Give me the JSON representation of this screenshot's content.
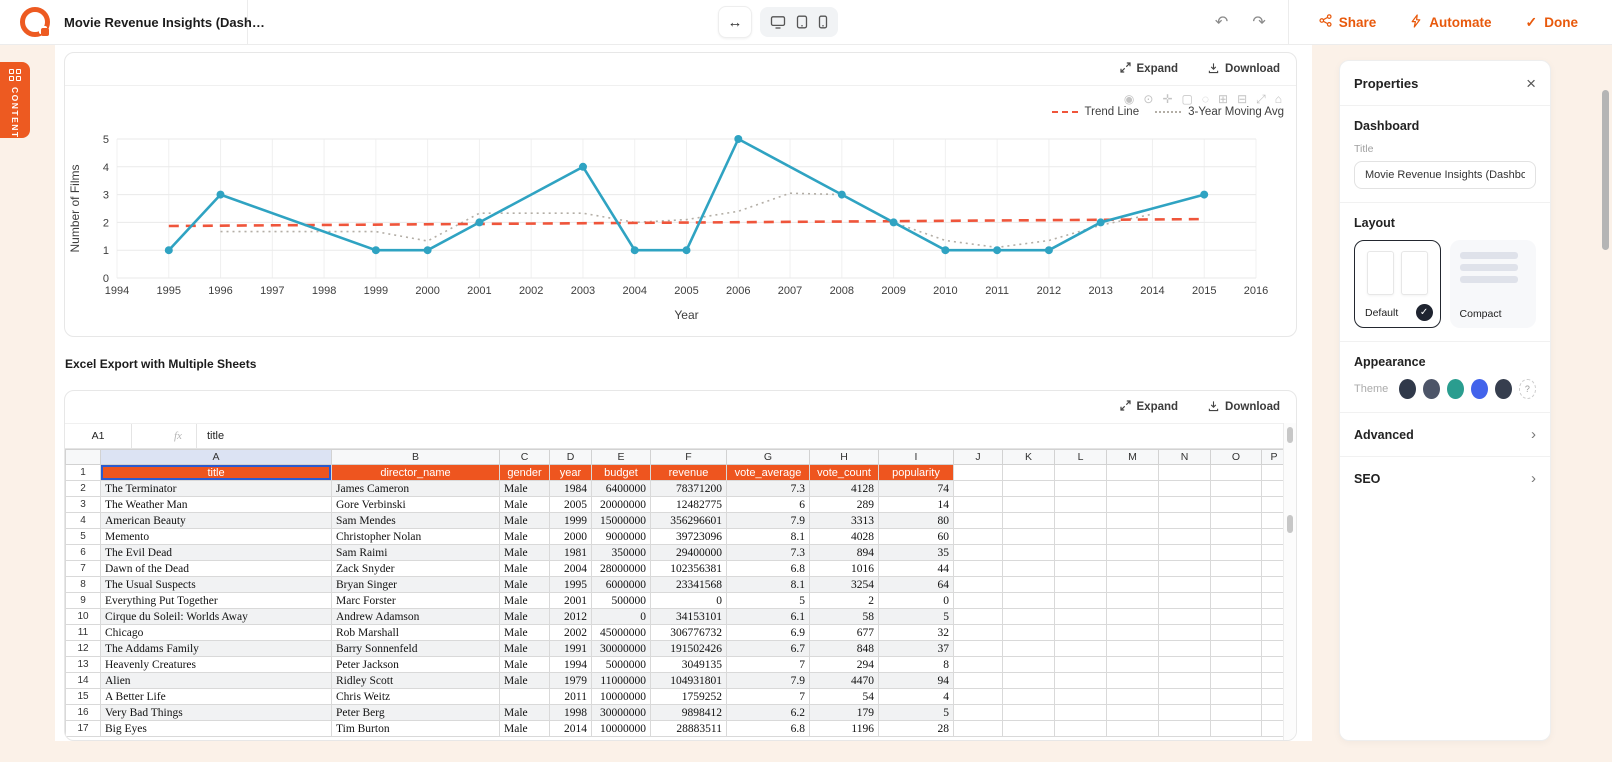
{
  "topbar": {
    "title": "Movie Revenue Insights (Dash…",
    "share_label": "Share",
    "automate_label": "Automate",
    "done_label": "Done"
  },
  "content_tab": {
    "label": "CONTENT"
  },
  "chart_card": {
    "expand_label": "Expand",
    "download_label": "Download",
    "modebar_icons": [
      {
        "name": "camera-icon",
        "glyph": "◉"
      },
      {
        "name": "zoom-icon",
        "glyph": "⊙"
      },
      {
        "name": "pan-icon",
        "glyph": "✛"
      },
      {
        "name": "box-select-icon",
        "glyph": "▢"
      },
      {
        "name": "lasso-icon",
        "glyph": "◌"
      },
      {
        "name": "zoom-in-icon",
        "glyph": "⊞"
      },
      {
        "name": "zoom-out-icon",
        "glyph": "⊟"
      },
      {
        "name": "autoscale-icon",
        "glyph": "⤢"
      },
      {
        "name": "reset-home-icon",
        "glyph": "⌂"
      }
    ],
    "legend": [
      {
        "label": "Trend Line",
        "color": "#ef553b",
        "style": "dashed"
      },
      {
        "label": "3-Year Moving Avg",
        "color": "#b3aea6",
        "style": "dotted"
      }
    ]
  },
  "chart_data": {
    "type": "line",
    "xlabel": "Year",
    "ylabel": "Number of Films",
    "xlim": [
      1994,
      2016
    ],
    "ylim": [
      0,
      5
    ],
    "xticks": [
      1994,
      1995,
      1996,
      1997,
      1998,
      1999,
      2000,
      2001,
      2002,
      2003,
      2004,
      2005,
      2006,
      2007,
      2008,
      2009,
      2010,
      2011,
      2012,
      2013,
      2014,
      2015,
      2016
    ],
    "yticks": [
      0,
      1,
      2,
      3,
      4,
      5
    ],
    "grid": true,
    "legend_position": "top-right",
    "series": [
      {
        "name": "Films per Year",
        "color": "#2fa3c2",
        "style": "solid-markers",
        "x": [
          1995,
          1996,
          1999,
          2000,
          2001,
          2003,
          2004,
          2005,
          2006,
          2008,
          2009,
          2010,
          2011,
          2012,
          2013,
          2015
        ],
        "y": [
          1,
          3,
          1,
          1,
          2,
          4,
          1,
          1,
          5,
          3,
          2,
          1,
          1,
          1,
          2,
          3
        ]
      },
      {
        "name": "3-Year Moving Avg",
        "color": "#b3aea6",
        "style": "dotted",
        "x": [
          1996,
          1999,
          2000,
          2001,
          2003,
          2004,
          2005,
          2006,
          2007,
          2008,
          2009,
          2010,
          2011,
          2012,
          2013,
          2014
        ],
        "y": [
          1.67,
          1.67,
          1.33,
          2.33,
          2.33,
          2.0,
          2.1,
          2.4,
          3.05,
          3.0,
          2.0,
          1.35,
          1.1,
          1.35,
          1.9,
          2.3
        ]
      },
      {
        "name": "Trend Line",
        "color": "#ef553b",
        "style": "dashed",
        "x": [
          1995,
          2015
        ],
        "y": [
          1.87,
          2.12
        ]
      }
    ]
  },
  "sheet_section": {
    "heading": "Excel Export with Multiple Sheets",
    "expand_label": "Expand",
    "download_label": "Download",
    "cell_ref": "A1",
    "fx_label": "fx",
    "formula_value": "title",
    "selected_cell": "A1",
    "column_letters": [
      "A",
      "B",
      "C",
      "D",
      "E",
      "F",
      "G",
      "H",
      "I",
      "J",
      "K",
      "L",
      "M",
      "N",
      "O",
      "P"
    ],
    "header_row": [
      "title",
      "director_name",
      "gender",
      "year",
      "budget",
      "revenue",
      "vote_average",
      "vote_count",
      "popularity"
    ],
    "rows": [
      [
        "The Terminator",
        "James Cameron",
        "Male",
        "1984",
        "6400000",
        "78371200",
        "7.3",
        "4128",
        "74"
      ],
      [
        "The Weather Man",
        "Gore Verbinski",
        "Male",
        "2005",
        "20000000",
        "12482775",
        "6",
        "289",
        "14"
      ],
      [
        "American Beauty",
        "Sam Mendes",
        "Male",
        "1999",
        "15000000",
        "356296601",
        "7.9",
        "3313",
        "80"
      ],
      [
        "Memento",
        "Christopher Nolan",
        "Male",
        "2000",
        "9000000",
        "39723096",
        "8.1",
        "4028",
        "60"
      ],
      [
        "The Evil Dead",
        "Sam Raimi",
        "Male",
        "1981",
        "350000",
        "29400000",
        "7.3",
        "894",
        "35"
      ],
      [
        "Dawn of the Dead",
        "Zack Snyder",
        "Male",
        "2004",
        "28000000",
        "102356381",
        "6.8",
        "1016",
        "44"
      ],
      [
        "The Usual Suspects",
        "Bryan Singer",
        "Male",
        "1995",
        "6000000",
        "23341568",
        "8.1",
        "3254",
        "64"
      ],
      [
        "Everything Put Together",
        "Marc Forster",
        "Male",
        "2001",
        "500000",
        "0",
        "5",
        "2",
        "0"
      ],
      [
        "Cirque du Soleil: Worlds Away",
        "Andrew Adamson",
        "Male",
        "2012",
        "0",
        "34153101",
        "6.1",
        "58",
        "5"
      ],
      [
        "Chicago",
        "Rob Marshall",
        "Male",
        "2002",
        "45000000",
        "306776732",
        "6.9",
        "677",
        "32"
      ],
      [
        "The Addams Family",
        "Barry Sonnenfeld",
        "Male",
        "1991",
        "30000000",
        "191502426",
        "6.7",
        "848",
        "37"
      ],
      [
        "Heavenly Creatures",
        "Peter Jackson",
        "Male",
        "1994",
        "5000000",
        "3049135",
        "7",
        "294",
        "8"
      ],
      [
        "Alien",
        "Ridley Scott",
        "Male",
        "1979",
        "11000000",
        "104931801",
        "7.9",
        "4470",
        "94"
      ],
      [
        "A Better Life",
        "Chris Weitz",
        "",
        "2011",
        "10000000",
        "1759252",
        "7",
        "54",
        "4"
      ],
      [
        "Very Bad Things",
        "Peter Berg",
        "Male",
        "1998",
        "30000000",
        "9898412",
        "6.2",
        "179",
        "5"
      ],
      [
        "Big Eyes",
        "Tim Burton",
        "Male",
        "2014",
        "10000000",
        "28883511",
        "6.8",
        "1196",
        "28"
      ]
    ]
  },
  "properties_panel": {
    "title": "Properties",
    "dashboard_section": "Dashboard",
    "title_label": "Title",
    "title_value": "Movie Revenue Insights (Dashboard)",
    "layout_section": "Layout",
    "layout_options": [
      {
        "label": "Default",
        "selected": true
      },
      {
        "label": "Compact",
        "selected": false
      }
    ],
    "appearance_section": "Appearance",
    "theme_label": "Theme",
    "theme_colors": [
      "#30394a",
      "#4d5568",
      "#2a9d8f",
      "#4263eb",
      "#363e4e"
    ],
    "advanced_section": "Advanced",
    "seo_section": "SEO"
  },
  "colors": {
    "accent": "#e8590c",
    "tab_orange": "#ed5a21",
    "table_header": "#ee551f",
    "teal_line": "#2fa3c2",
    "trend_line": "#ef553b",
    "moving_avg": "#b3aea6",
    "background_cream": "#fbf1e8"
  }
}
